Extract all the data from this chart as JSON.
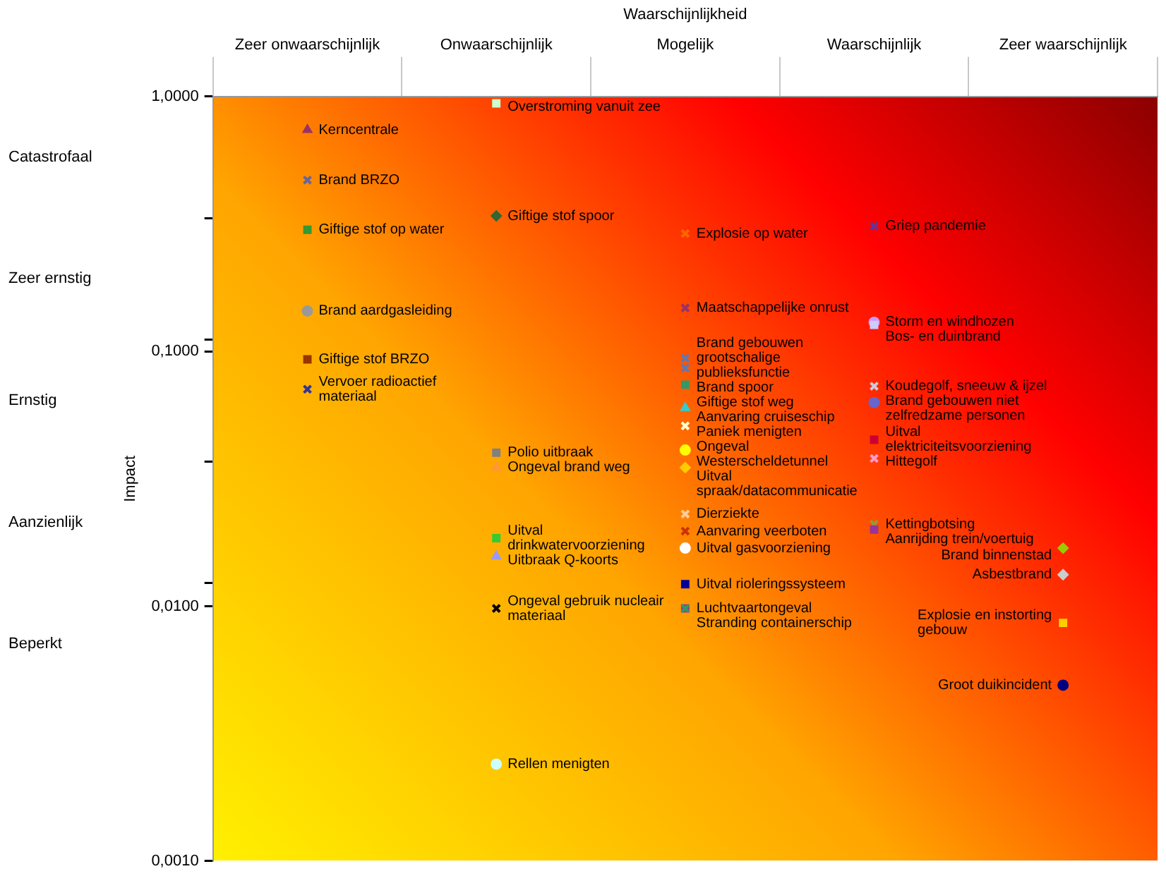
{
  "chart_data": {
    "type": "scatter",
    "xlabel": "Waarschijnlijkheid",
    "ylabel": "Impact",
    "categories": [
      "Zeer onwaarschijnlijk",
      "Onwaarschijnlijk",
      "Mogelijk",
      "Waarschijnlijk",
      "Zeer waarschijnlijk"
    ],
    "log": "y",
    "ylim": [
      0.001,
      1
    ],
    "yticks": [
      {
        "value": 1,
        "label": "1,0000"
      },
      {
        "value": 0.3333,
        "label": null
      },
      {
        "value": 0.1111,
        "label": null
      },
      {
        "value": 0.1,
        "label": "0,1000"
      },
      {
        "value": 0.037,
        "label": null
      },
      {
        "value": 0.0123,
        "label": null
      },
      {
        "value": 0.01,
        "label": "0,0100"
      },
      {
        "value": 0.001,
        "label": "0,0010"
      }
    ],
    "annotations": [
      "Catastrofaal",
      "Zeer ernstig",
      "Ernstig",
      "Aanzienlijk",
      "Beperkt"
    ],
    "grid": false,
    "legend": false,
    "series": [
      {
        "name": "Kerncentrale",
        "color": "#993366",
        "marker": "triangle",
        "x": [
          "Zeer onwaarschijnlijk"
        ],
        "values": [
          0.74
        ]
      },
      {
        "name": "Brand BRZO",
        "color": "#666699",
        "marker": "cross",
        "x": [
          "Zeer onwaarschijnlijk"
        ],
        "values": [
          0.47
        ]
      },
      {
        "name": "Giftige stof op water",
        "color": "#339933",
        "marker": "square",
        "x": [
          "Zeer onwaarschijnlijk"
        ],
        "values": [
          0.3
        ]
      },
      {
        "name": "Brand aardgasleiding",
        "color": "#999999",
        "marker": "circle",
        "x": [
          "Zeer onwaarschijnlijk"
        ],
        "values": [
          0.144
        ]
      },
      {
        "name": "Giftige stof BRZO",
        "color": "#993300",
        "marker": "square",
        "x": [
          "Zeer onwaarschijnlijk"
        ],
        "values": [
          0.093
        ]
      },
      {
        "name": "Vervoer radioactief materiaal",
        "color": "#333399",
        "marker": "cross",
        "x": [
          "Zeer onwaarschijnlijk"
        ],
        "values": [
          0.071
        ]
      },
      {
        "name": "Overstroming vanuit zee",
        "color": "#ccffcc",
        "marker": "square",
        "x": [
          "Onwaarschijnlijk"
        ],
        "values": [
          0.94
        ]
      },
      {
        "name": "Giftige stof spoor",
        "color": "#336633",
        "marker": "diamond",
        "x": [
          "Onwaarschijnlijk"
        ],
        "values": [
          0.34
        ]
      },
      {
        "name": "Polio uitbraak",
        "color": "#808080",
        "marker": "square",
        "x": [
          "Onwaarschijnlijk"
        ],
        "values": [
          0.04
        ]
      },
      {
        "name": "Ongeval brand weg",
        "color": "#ff9933",
        "marker": "triangle",
        "x": [
          "Onwaarschijnlijk"
        ],
        "values": [
          0.035
        ]
      },
      {
        "name": "Uitval drinkwatervoorziening",
        "color": "#33cc33",
        "marker": "square",
        "x": [
          "Onwaarschijnlijk"
        ],
        "values": [
          0.0185
        ]
      },
      {
        "name": "Uitbraak Q-koorts",
        "color": "#9999ff",
        "marker": "triangle",
        "x": [
          "Onwaarschijnlijk"
        ],
        "values": [
          0.0157
        ]
      },
      {
        "name": "Ongeval gebruik nucleair materiaal",
        "color": "#000000",
        "marker": "cross",
        "x": [
          "Onwaarschijnlijk"
        ],
        "values": [
          0.0098
        ]
      },
      {
        "name": "Rellen menigten",
        "color": "#ccffff",
        "marker": "circle",
        "x": [
          "Onwaarschijnlijk"
        ],
        "values": [
          0.0024
        ]
      },
      {
        "name": "Explosie op water",
        "color": "#ff6600",
        "marker": "cross",
        "x": [
          "Mogelijk"
        ],
        "values": [
          0.29
        ]
      },
      {
        "name": "Maatschappelijke onrust",
        "color": "#993366",
        "marker": "cross",
        "x": [
          "Mogelijk"
        ],
        "values": [
          0.148
        ]
      },
      {
        "name": "Brand gebouwen grootschalige publieksfunctie",
        "color": "#6677aa",
        "marker": "cross",
        "x": [
          "Mogelijk"
        ],
        "values": [
          0.094
        ]
      },
      {
        "name": "Brand spoor",
        "color": "#6677aa",
        "marker": "cross",
        "x": [
          "Mogelijk"
        ],
        "values": [
          0.086
        ]
      },
      {
        "name": "Giftige stof weg",
        "color": "#339966",
        "marker": "square",
        "x": [
          "Mogelijk"
        ],
        "values": [
          0.074
        ]
      },
      {
        "name": "Aanvaring cruiseschip",
        "color": "#33cccc",
        "marker": "triangle",
        "x": [
          "Mogelijk"
        ],
        "values": [
          0.06
        ]
      },
      {
        "name": "Paniek menigten",
        "color": "#ffffcc",
        "marker": "cross",
        "x": [
          "Mogelijk"
        ],
        "values": [
          0.051
        ]
      },
      {
        "name": "Ongeval Westerscheldetunnel",
        "color": "#ffff00",
        "marker": "circle",
        "x": [
          "Mogelijk"
        ],
        "values": [
          0.041
        ]
      },
      {
        "name": "Uitval spraak/datacommunicatie",
        "color": "#ffcc00",
        "marker": "diamond",
        "x": [
          "Mogelijk"
        ],
        "values": [
          0.035
        ]
      },
      {
        "name": "Dierziekte",
        "color": "#ffcc99",
        "marker": "cross",
        "x": [
          "Mogelijk"
        ],
        "values": [
          0.023
        ]
      },
      {
        "name": "Aanvaring veerboten",
        "color": "#cc3300",
        "marker": "cross",
        "x": [
          "Mogelijk"
        ],
        "values": [
          0.0197
        ]
      },
      {
        "name": "Uitval gasvoorziening",
        "color": "#ffffff",
        "marker": "circle",
        "x": [
          "Mogelijk"
        ],
        "values": [
          0.0169
        ]
      },
      {
        "name": "Uitval rioleringssysteem",
        "color": "#000099",
        "marker": "square",
        "x": [
          "Mogelijk"
        ],
        "values": [
          0.0122
        ]
      },
      {
        "name": "Luchtvaartongeval",
        "color": "#993399",
        "marker": "square",
        "x": [
          "Mogelijk"
        ],
        "values": [
          0.0098
        ]
      },
      {
        "name": "Stranding containerschip",
        "color": "#339966",
        "marker": "cross",
        "x": [
          "Mogelijk"
        ],
        "values": [
          0.0098
        ]
      },
      {
        "name": "Griep pandemie",
        "color": "#663399",
        "marker": "cross",
        "x": [
          "Waarschijnlijk"
        ],
        "values": [
          0.31
        ]
      },
      {
        "name": "Storm en windhozen",
        "color": "#cc99ff",
        "marker": "circle",
        "x": [
          "Waarschijnlijk"
        ],
        "values": [
          0.13
        ]
      },
      {
        "name": "Bos- en duinbrand",
        "color": "#ccccff",
        "marker": "square",
        "x": [
          "Waarschijnlijk"
        ],
        "values": [
          0.127
        ]
      },
      {
        "name": "Koudegolf, sneeuw & ijzel",
        "color": "#ccccdd",
        "marker": "cross",
        "x": [
          "Waarschijnlijk"
        ],
        "values": [
          0.073
        ]
      },
      {
        "name": "Brand gebouwen niet zelfredzame personen",
        "color": "#6666cc",
        "marker": "circle",
        "x": [
          "Waarschijnlijk"
        ],
        "values": [
          0.063
        ]
      },
      {
        "name": "Uitval elektriciteitsvoorziening",
        "color": "#cc0033",
        "marker": "square",
        "x": [
          "Waarschijnlijk"
        ],
        "values": [
          0.045
        ]
      },
      {
        "name": "Hittegolf",
        "color": "#ff99cc",
        "marker": "cross",
        "x": [
          "Waarschijnlijk"
        ],
        "values": [
          0.038
        ]
      },
      {
        "name": "Kettingbotsing",
        "color": "#999933",
        "marker": "cross",
        "x": [
          "Waarschijnlijk"
        ],
        "values": [
          0.021
        ]
      },
      {
        "name": "Aanrijding trein/voertuig",
        "color": "#993399",
        "marker": "square",
        "x": [
          "Waarschijnlijk"
        ],
        "values": [
          0.02
        ]
      },
      {
        "name": "Brand binnenstad",
        "color": "#99cc00",
        "marker": "diamond",
        "x": [
          "Zeer waarschijnlijk"
        ],
        "values": [
          0.0169
        ]
      },
      {
        "name": "Asbestbrand",
        "color": "#cccccc",
        "marker": "diamond",
        "x": [
          "Zeer waarschijnlijk"
        ],
        "values": [
          0.0133
        ]
      },
      {
        "name": "Explosie en instorting gebouw",
        "color": "#ffcc00",
        "marker": "square",
        "x": [
          "Zeer waarschijnlijk"
        ],
        "values": [
          0.0086
        ]
      },
      {
        "name": "Groot duikincident",
        "color": "#000080",
        "marker": "circle",
        "x": [
          "Zeer waarschijnlijk"
        ],
        "values": [
          0.0049
        ]
      }
    ]
  }
}
